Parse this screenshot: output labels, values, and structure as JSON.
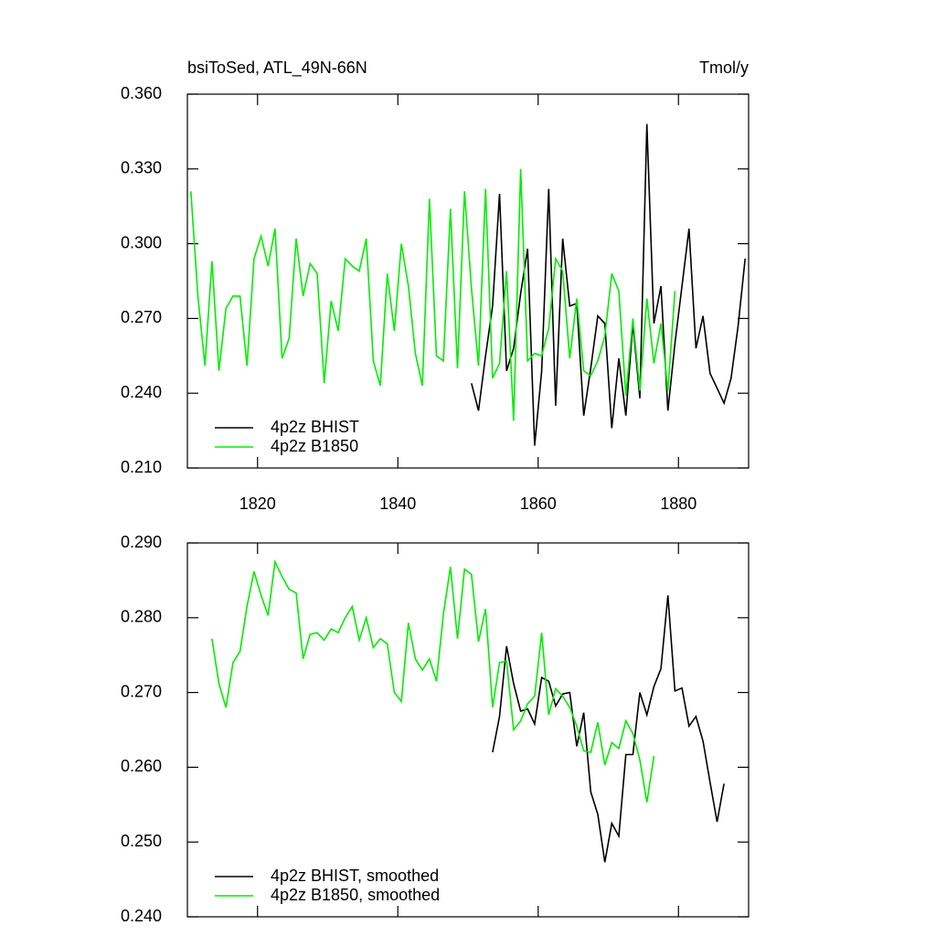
{
  "chart_data": [
    {
      "type": "line",
      "title": "bsiToSed, ATL_49N-66N",
      "units": "Tmol/y",
      "xlim": [
        1810,
        1890
      ],
      "xticks": [
        1820,
        1840,
        1860,
        1880
      ],
      "ylim": [
        0.21,
        0.36
      ],
      "yticks": [
        {
          "value": 0.21,
          "label": "0.210"
        },
        {
          "value": 0.24,
          "label": "0.240"
        },
        {
          "value": 0.27,
          "label": "0.270"
        },
        {
          "value": 0.3,
          "label": "0.300"
        },
        {
          "value": 0.33,
          "label": "0.330"
        },
        {
          "value": 0.36,
          "label": "0.360"
        }
      ],
      "series": [
        {
          "name": "4p2z BHIST",
          "color": "#000000",
          "x0": 1850.5,
          "values": [
            0.244,
            0.233,
            0.255,
            0.275,
            0.32,
            0.249,
            0.258,
            0.28,
            0.298,
            0.219,
            0.249,
            0.322,
            0.235,
            0.302,
            0.275,
            0.276,
            0.231,
            0.25,
            0.271,
            0.268,
            0.226,
            0.254,
            0.231,
            0.268,
            0.238,
            0.348,
            0.268,
            0.283,
            0.233,
            0.26,
            0.283,
            0.306,
            0.258,
            0.271,
            0.248,
            0.242,
            0.236,
            0.246,
            0.267,
            0.294
          ]
        },
        {
          "name": "4p2z B1850",
          "color": "#00ee00",
          "x0": 1810.5,
          "values": [
            0.321,
            0.279,
            0.251,
            0.293,
            0.249,
            0.274,
            0.279,
            0.279,
            0.251,
            0.294,
            0.303,
            0.291,
            0.306,
            0.254,
            0.262,
            0.302,
            0.279,
            0.292,
            0.288,
            0.244,
            0.277,
            0.265,
            0.294,
            0.291,
            0.289,
            0.302,
            0.253,
            0.243,
            0.288,
            0.265,
            0.3,
            0.283,
            0.256,
            0.243,
            0.318,
            0.255,
            0.253,
            0.314,
            0.25,
            0.321,
            0.282,
            0.251,
            0.322,
            0.246,
            0.252,
            0.289,
            0.229,
            0.33,
            0.253,
            0.256,
            0.255,
            0.266,
            0.294,
            0.289,
            0.254,
            0.278,
            0.249,
            0.247,
            0.253,
            0.263,
            0.288,
            0.281,
            0.239,
            0.27,
            0.241,
            0.278,
            0.252,
            0.268,
            0.241,
            0.281
          ]
        }
      ]
    },
    {
      "type": "line",
      "xlim": [
        1810,
        1890
      ],
      "ylim": [
        0.24,
        0.29
      ],
      "yticks": [
        {
          "value": 0.24,
          "label": "0.240"
        },
        {
          "value": 0.25,
          "label": "0.250"
        },
        {
          "value": 0.26,
          "label": "0.260"
        },
        {
          "value": 0.27,
          "label": "0.270"
        },
        {
          "value": 0.28,
          "label": "0.280"
        },
        {
          "value": 0.29,
          "label": "0.290"
        }
      ],
      "series": [
        {
          "name": "4p2z BHIST, smoothed",
          "color": "#000000",
          "x0": 1853.5,
          "values": [
            0.262,
            0.2668,
            0.2762,
            0.2712,
            0.2675,
            0.2678,
            0.2658,
            0.272,
            0.2715,
            0.2682,
            0.2698,
            0.27,
            0.2628,
            0.2673,
            0.2567,
            0.2537,
            0.2473,
            0.2525,
            0.2508,
            0.2617,
            0.2617,
            0.27,
            0.267,
            0.2708,
            0.2732,
            0.283,
            0.2702,
            0.2706,
            0.2655,
            0.2668,
            0.2635,
            0.258,
            0.2527,
            0.2578
          ]
        },
        {
          "name": "4p2z B1850, smoothed",
          "color": "#00ee00",
          "x0": 1813.5,
          "values": [
            0.2772,
            0.2712,
            0.268,
            0.274,
            0.2755,
            0.2815,
            0.2862,
            0.283,
            0.2803,
            0.2875,
            0.2855,
            0.2838,
            0.2833,
            0.2745,
            0.2778,
            0.278,
            0.277,
            0.2785,
            0.278,
            0.28,
            0.2815,
            0.277,
            0.28,
            0.276,
            0.2772,
            0.2765,
            0.27,
            0.2688,
            0.2793,
            0.2745,
            0.273,
            0.2745,
            0.2715,
            0.2805,
            0.2868,
            0.2772,
            0.2865,
            0.2858,
            0.2768,
            0.2812,
            0.268,
            0.274,
            0.2742,
            0.265,
            0.2662,
            0.2685,
            0.2695,
            0.278,
            0.267,
            0.2705,
            0.2695,
            0.268,
            0.2655,
            0.2622,
            0.262,
            0.266,
            0.2603,
            0.2633,
            0.2625,
            0.2662,
            0.2645,
            0.261,
            0.2553,
            0.2615
          ]
        }
      ]
    }
  ]
}
